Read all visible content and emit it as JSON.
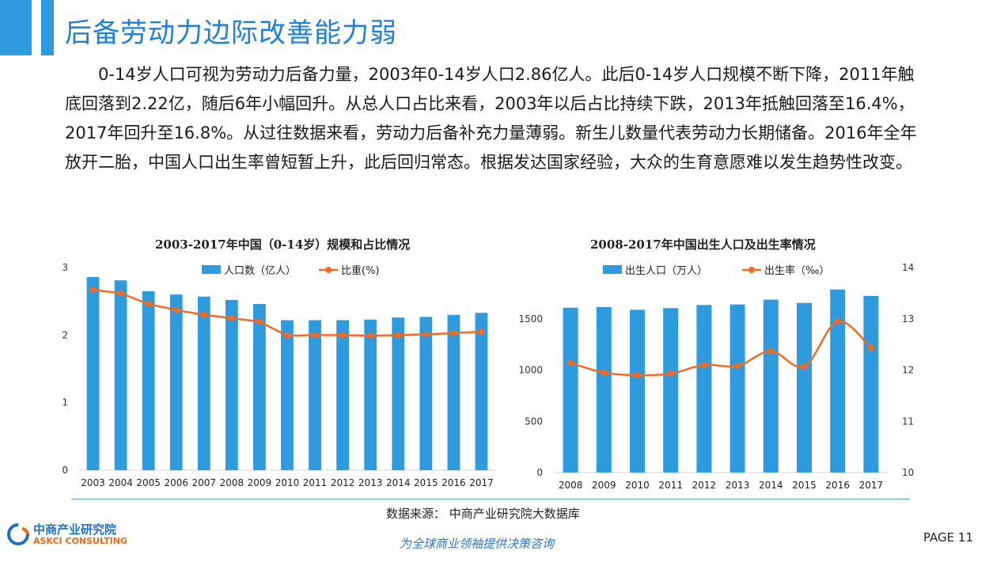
{
  "header": {
    "title": "后备劳动力边际改善能力弱"
  },
  "paragraph": "0-14岁人口可视为劳动力后备力量，2003年0-14岁人口2.86亿人。此后0-14岁人口规模不断下降，2011年触底回落到2.22亿，随后6年小幅回升。从总人口占比来看，2003年以后占比持续下跌，2013年抵触回落至16.4%，2017年回升至16.8%。从过往数据来看，劳动力后备补充力量薄弱。新生儿数量代表劳动力长期储备。2016年全年放开二胎，中国人口出生率曾短暂上升，此后回归常态。根据发达国家经验，大众的生育意愿难以发生趋势性改变。",
  "chart_data": [
    {
      "type": "bar",
      "title": "2003-2017年中国（0-14岁）规模和占比情况",
      "categories": [
        "2003",
        "2004",
        "2005",
        "2006",
        "2007",
        "2008",
        "2009",
        "2010",
        "2011",
        "2012",
        "2013",
        "2014",
        "2015",
        "2016",
        "2017"
      ],
      "series": [
        {
          "name": "人口数（亿人）",
          "type": "bar",
          "axis": "left",
          "color": "#2e9bde",
          "values": [
            2.86,
            2.81,
            2.65,
            2.6,
            2.57,
            2.52,
            2.46,
            2.22,
            2.22,
            2.22,
            2.23,
            2.26,
            2.27,
            2.3,
            2.33
          ]
        },
        {
          "name": "比重(%)",
          "type": "line",
          "axis": "left-scaled",
          "color": "#f26b21",
          "values": [
            2.67,
            2.62,
            2.46,
            2.37,
            2.3,
            2.25,
            2.2,
            1.99,
            2.0,
            2.0,
            1.99,
            2.0,
            2.01,
            2.03,
            2.05
          ]
        }
      ],
      "ylim": [
        0,
        3
      ],
      "yticks": [
        "0",
        "1",
        "2",
        "3"
      ],
      "legend": "top",
      "grid": false
    },
    {
      "type": "bar",
      "title": "2008-2017年中国出生人口及出生率情况",
      "categories": [
        "2008",
        "2009",
        "2010",
        "2011",
        "2012",
        "2013",
        "2014",
        "2015",
        "2016",
        "2017"
      ],
      "series": [
        {
          "name": "出生人口（万人）",
          "type": "bar",
          "axis": "left",
          "color": "#2e9bde",
          "values": [
            1608,
            1615,
            1588,
            1604,
            1635,
            1640,
            1687,
            1655,
            1786,
            1723
          ]
        },
        {
          "name": "出生率（‰）",
          "type": "line",
          "axis": "right",
          "color": "#f26b21",
          "values": [
            12.14,
            11.95,
            11.9,
            11.93,
            12.1,
            12.08,
            12.37,
            12.07,
            12.95,
            12.43
          ]
        }
      ],
      "ylim": [
        0,
        2000
      ],
      "yticks": [
        "0",
        "500",
        "1000",
        "1500"
      ],
      "y2lim": [
        10,
        14
      ],
      "y2ticks": [
        "10",
        "11",
        "12",
        "13",
        "14"
      ],
      "legend": "top",
      "grid": false
    }
  ],
  "footer": {
    "source": "数据来源：  中商产业研究院大数据库",
    "logo_cn": "中商产业研究院",
    "logo_en": "ASKCI CONSULTING",
    "slogan": "为全球商业领袖提供决策咨询",
    "page": "PAGE  11"
  }
}
